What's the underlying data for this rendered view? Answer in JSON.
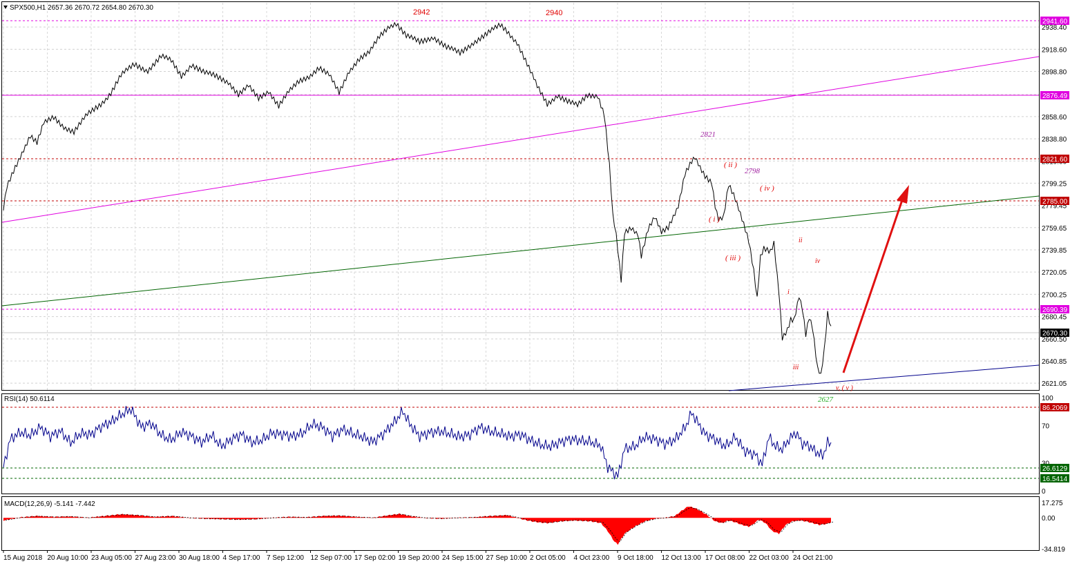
{
  "window": {
    "symbol": "SPX500,H1",
    "ohlc": "2657.36 2670.72 2654.80 2670.30"
  },
  "colors": {
    "price": "#000000",
    "grid": "#c8c8c8",
    "magenta": "#e000e0",
    "red": "#c00000",
    "green": "#006400",
    "navy": "#00008b",
    "rsi": "#00008b",
    "macd": "#ff0000"
  },
  "chart_data": [
    {
      "type": "line",
      "name": "price",
      "y_range": [
        2615,
        2960
      ],
      "y_ticks": [
        "2938.40",
        "2918.60",
        "2898.80",
        "2878.20",
        "2858.60",
        "2838.80",
        "2819.00",
        "2799.25",
        "2779.45",
        "2759.65",
        "2739.85",
        "2720.05",
        "2700.25",
        "2680.45",
        "2660.50",
        "2640.85",
        "2621.05"
      ],
      "x_labels": [
        "15 Aug 2018",
        "20 Aug 10:00",
        "23 Aug 05:00",
        "27 Aug 23:00",
        "30 Aug 18:00",
        "4 Sep 17:00",
        "7 Sep 12:00",
        "12 Sep 07:00",
        "17 Sep 02:00",
        "19 Sep 20:00",
        "24 Sep 15:00",
        "27 Sep 10:00",
        "2 Oct 05:00",
        "4 Oct 23:00",
        "9 Oct 18:00",
        "12 Oct 13:00",
        "17 Oct 08:00",
        "22 Oct 03:00",
        "24 Oct 21:00"
      ],
      "anchors": [
        [
          0,
          2775
        ],
        [
          2,
          2795
        ],
        [
          6,
          2810
        ],
        [
          12,
          2830
        ],
        [
          16,
          2842
        ],
        [
          20,
          2835
        ],
        [
          24,
          2852
        ],
        [
          30,
          2858
        ],
        [
          36,
          2850
        ],
        [
          42,
          2845
        ],
        [
          50,
          2860
        ],
        [
          58,
          2870
        ],
        [
          64,
          2880
        ],
        [
          70,
          2895
        ],
        [
          78,
          2905
        ],
        [
          86,
          2900
        ],
        [
          94,
          2912
        ],
        [
          100,
          2908
        ],
        [
          106,
          2895
        ],
        [
          112,
          2905
        ],
        [
          120,
          2897
        ],
        [
          126,
          2895
        ],
        [
          134,
          2890
        ],
        [
          140,
          2878
        ],
        [
          146,
          2885
        ],
        [
          152,
          2875
        ],
        [
          158,
          2882
        ],
        [
          164,
          2868
        ],
        [
          170,
          2880
        ],
        [
          176,
          2890
        ],
        [
          182,
          2895
        ],
        [
          188,
          2902
        ],
        [
          194,
          2895
        ],
        [
          200,
          2880
        ],
        [
          206,
          2900
        ],
        [
          212,
          2910
        ],
        [
          218,
          2915
        ],
        [
          224,
          2930
        ],
        [
          230,
          2940
        ],
        [
          234,
          2942
        ],
        [
          240,
          2930
        ],
        [
          248,
          2925
        ],
        [
          256,
          2930
        ],
        [
          264,
          2920
        ],
        [
          272,
          2915
        ],
        [
          280,
          2925
        ],
        [
          288,
          2932
        ],
        [
          296,
          2940
        ],
        [
          300,
          2935
        ],
        [
          306,
          2925
        ],
        [
          312,
          2905
        ],
        [
          318,
          2885
        ],
        [
          324,
          2870
        ],
        [
          330,
          2878
        ],
        [
          336,
          2872
        ],
        [
          342,
          2868
        ],
        [
          348,
          2878
        ],
        [
          354,
          2878
        ],
        [
          358,
          2860
        ],
        [
          361,
          2815
        ],
        [
          363,
          2770
        ],
        [
          365,
          2752
        ],
        [
          368,
          2712
        ],
        [
          370,
          2755
        ],
        [
          374,
          2760
        ],
        [
          378,
          2755
        ],
        [
          380,
          2735
        ],
        [
          384,
          2758
        ],
        [
          388,
          2768
        ],
        [
          392,
          2755
        ],
        [
          396,
          2760
        ],
        [
          402,
          2780
        ],
        [
          406,
          2808
        ],
        [
          410,
          2818
        ],
        [
          412,
          2821
        ],
        [
          415,
          2812
        ],
        [
          418,
          2805
        ],
        [
          422,
          2800
        ],
        [
          424,
          2780
        ],
        [
          426,
          2768
        ],
        [
          429,
          2770
        ],
        [
          432,
          2798
        ],
        [
          435,
          2788
        ],
        [
          438,
          2775
        ],
        [
          441,
          2762
        ],
        [
          444,
          2748
        ],
        [
          447,
          2722
        ],
        [
          449,
          2698
        ],
        [
          451,
          2735
        ],
        [
          453,
          2742
        ],
        [
          455,
          2740
        ],
        [
          457,
          2738
        ],
        [
          459,
          2745
        ],
        [
          462,
          2700
        ],
        [
          464,
          2660
        ],
        [
          467,
          2668
        ],
        [
          469,
          2678
        ],
        [
          471,
          2678
        ],
        [
          474,
          2700
        ],
        [
          476,
          2688
        ],
        [
          478,
          2665
        ],
        [
          480,
          2680
        ],
        [
          482,
          2670
        ],
        [
          485,
          2633
        ],
        [
          487,
          2627
        ],
        [
          489,
          2650
        ],
        [
          491,
          2683
        ],
        [
          493,
          2670
        ]
      ]
    },
    {
      "type": "line",
      "name": "RSI(14)",
      "label": "RSI(14) 50.6114",
      "y_range": [
        0,
        100
      ],
      "y_ticks": [
        "100",
        "70",
        "30",
        "0"
      ],
      "levels": [
        86.2069,
        26.6129,
        16.5414
      ],
      "level_labels": [
        "86.2069",
        "26.6129",
        "16.5414"
      ],
      "anchors": [
        [
          0,
          25
        ],
        [
          4,
          55
        ],
        [
          10,
          63
        ],
        [
          16,
          60
        ],
        [
          22,
          68
        ],
        [
          28,
          58
        ],
        [
          34,
          64
        ],
        [
          40,
          52
        ],
        [
          46,
          62
        ],
        [
          52,
          60
        ],
        [
          58,
          68
        ],
        [
          64,
          74
        ],
        [
          70,
          82
        ],
        [
          76,
          88
        ],
        [
          82,
          68
        ],
        [
          88,
          72
        ],
        [
          94,
          60
        ],
        [
          100,
          55
        ],
        [
          106,
          63
        ],
        [
          112,
          58
        ],
        [
          118,
          52
        ],
        [
          124,
          60
        ],
        [
          130,
          48
        ],
        [
          136,
          55
        ],
        [
          142,
          60
        ],
        [
          148,
          52
        ],
        [
          154,
          55
        ],
        [
          160,
          62
        ],
        [
          166,
          60
        ],
        [
          172,
          58
        ],
        [
          178,
          62
        ],
        [
          184,
          72
        ],
        [
          190,
          68
        ],
        [
          196,
          58
        ],
        [
          202,
          66
        ],
        [
          208,
          62
        ],
        [
          214,
          58
        ],
        [
          220,
          52
        ],
        [
          226,
          60
        ],
        [
          232,
          72
        ],
        [
          238,
          86
        ],
        [
          242,
          72
        ],
        [
          248,
          58
        ],
        [
          254,
          62
        ],
        [
          260,
          64
        ],
        [
          266,
          62
        ],
        [
          272,
          58
        ],
        [
          278,
          60
        ],
        [
          284,
          68
        ],
        [
          290,
          64
        ],
        [
          296,
          62
        ],
        [
          302,
          58
        ],
        [
          308,
          60
        ],
        [
          314,
          54
        ],
        [
          320,
          50
        ],
        [
          326,
          48
        ],
        [
          332,
          52
        ],
        [
          338,
          55
        ],
        [
          344,
          54
        ],
        [
          350,
          53
        ],
        [
          356,
          48
        ],
        [
          360,
          25
        ],
        [
          363,
          20
        ],
        [
          366,
          15
        ],
        [
          370,
          45
        ],
        [
          376,
          48
        ],
        [
          382,
          58
        ],
        [
          388,
          55
        ],
        [
          394,
          50
        ],
        [
          400,
          55
        ],
        [
          406,
          68
        ],
        [
          410,
          84
        ],
        [
          414,
          72
        ],
        [
          418,
          60
        ],
        [
          424,
          55
        ],
        [
          430,
          48
        ],
        [
          436,
          58
        ],
        [
          442,
          42
        ],
        [
          448,
          38
        ],
        [
          452,
          28
        ],
        [
          456,
          58
        ],
        [
          460,
          48
        ],
        [
          464,
          45
        ],
        [
          468,
          55
        ],
        [
          472,
          62
        ],
        [
          476,
          50
        ],
        [
          480,
          48
        ],
        [
          484,
          42
        ],
        [
          488,
          38
        ],
        [
          491,
          52
        ],
        [
          493,
          50.6
        ]
      ]
    },
    {
      "type": "area",
      "name": "MACD(12,26,9)",
      "label": "MACD(12,26,9) -5.141 -7.442",
      "y_range": [
        -35,
        22
      ],
      "y_ticks": [
        "17.275",
        "0.00",
        "-34.819"
      ],
      "anchors": [
        [
          0,
          -3
        ],
        [
          10,
          0.5
        ],
        [
          20,
          2
        ],
        [
          30,
          1
        ],
        [
          40,
          1.5
        ],
        [
          50,
          0
        ],
        [
          60,
          2
        ],
        [
          70,
          4
        ],
        [
          80,
          3
        ],
        [
          90,
          1
        ],
        [
          100,
          2
        ],
        [
          110,
          0
        ],
        [
          120,
          -1
        ],
        [
          130,
          -1.5
        ],
        [
          140,
          -2
        ],
        [
          150,
          -1.5
        ],
        [
          160,
          0
        ],
        [
          170,
          1
        ],
        [
          180,
          0.5
        ],
        [
          190,
          2
        ],
        [
          200,
          2.5
        ],
        [
          210,
          1
        ],
        [
          220,
          0
        ],
        [
          230,
          3
        ],
        [
          236,
          4.5
        ],
        [
          242,
          2
        ],
        [
          250,
          0
        ],
        [
          260,
          -1
        ],
        [
          270,
          0
        ],
        [
          280,
          0.5
        ],
        [
          290,
          2
        ],
        [
          300,
          3
        ],
        [
          306,
          0
        ],
        [
          312,
          -3
        ],
        [
          318,
          -5
        ],
        [
          324,
          -6
        ],
        [
          332,
          -4
        ],
        [
          340,
          -3
        ],
        [
          350,
          -4
        ],
        [
          356,
          -6
        ],
        [
          360,
          -15
        ],
        [
          364,
          -27
        ],
        [
          366,
          -30
        ],
        [
          370,
          -18
        ],
        [
          376,
          -10
        ],
        [
          382,
          -4
        ],
        [
          388,
          -1
        ],
        [
          394,
          0
        ],
        [
          400,
          2
        ],
        [
          404,
          8
        ],
        [
          408,
          13
        ],
        [
          412,
          11
        ],
        [
          416,
          7
        ],
        [
          420,
          2
        ],
        [
          424,
          -4
        ],
        [
          428,
          -6
        ],
        [
          432,
          -3
        ],
        [
          436,
          -5
        ],
        [
          440,
          -8
        ],
        [
          444,
          -10
        ],
        [
          446,
          -8
        ],
        [
          450,
          -2
        ],
        [
          454,
          -6
        ],
        [
          458,
          -15
        ],
        [
          462,
          -18
        ],
        [
          466,
          -8
        ],
        [
          470,
          -4
        ],
        [
          474,
          -3
        ],
        [
          478,
          -4
        ],
        [
          482,
          -6
        ],
        [
          486,
          -8
        ],
        [
          490,
          -7
        ],
        [
          493,
          -5.1
        ]
      ]
    }
  ],
  "levels": {
    "l2941": "2941.60",
    "l2876": "2876.49",
    "l2821": "2821.60",
    "l2785": "2785.00",
    "l2690": "2690.39",
    "l2670": "2670.30"
  },
  "annotations": {
    "a2942": "2942",
    "a2940": "2940",
    "a2821": "2821",
    "a2798": "2798",
    "a2627": "2627",
    "w_i_big": "( i )",
    "w_ii_big": "( ii )",
    "w_iii_big": "( iii )",
    "w_iv_big": "( iv )",
    "w_v_big": "v, ( v )",
    "w_i": "i",
    "w_ii": "ii",
    "w_iii": "iii",
    "w_iv": "iv"
  }
}
